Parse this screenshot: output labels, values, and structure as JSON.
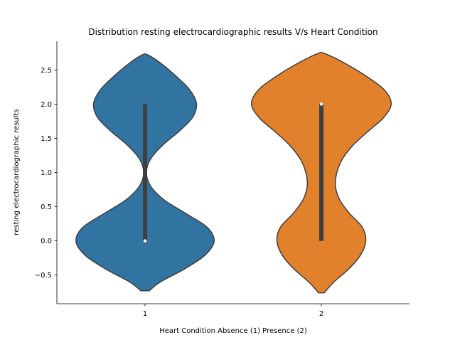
{
  "chart_data": {
    "type": "violin",
    "title": "Distribution resting electrocardiographic results V/s Heart Condition",
    "xlabel": "Heart Condition Absence (1) Presence (2)",
    "ylabel": "resting electrocardiographic results",
    "categories": [
      "1",
      "2"
    ],
    "colors": [
      "#3274a1",
      "#e1812c"
    ],
    "ylim": [
      -0.92,
      2.92
    ],
    "yticks": [
      -0.5,
      0.0,
      0.5,
      1.0,
      1.5,
      2.0,
      2.5
    ],
    "ytick_labels": [
      "−0.5",
      "0.0",
      "0.5",
      "1.0",
      "1.5",
      "2.0",
      "2.5"
    ],
    "violins": [
      {
        "category": "1",
        "color": "#3274a1",
        "profile": [
          [
            -0.73,
            0.06
          ],
          [
            -0.6,
            0.22
          ],
          [
            -0.4,
            0.58
          ],
          [
            -0.2,
            0.86
          ],
          [
            0.0,
            0.98
          ],
          [
            0.2,
            0.88
          ],
          [
            0.4,
            0.58
          ],
          [
            0.6,
            0.27
          ],
          [
            0.8,
            0.08
          ],
          [
            1.0,
            0.02
          ],
          [
            1.2,
            0.08
          ],
          [
            1.4,
            0.25
          ],
          [
            1.6,
            0.48
          ],
          [
            1.8,
            0.67
          ],
          [
            2.0,
            0.73
          ],
          [
            2.2,
            0.64
          ],
          [
            2.4,
            0.45
          ],
          [
            2.6,
            0.22
          ],
          [
            2.72,
            0.04
          ]
        ],
        "median": 0.0,
        "q1": 0.0,
        "q3": 2.0,
        "whisker_low": 0.0,
        "whisker_high": 2.0
      },
      {
        "category": "2",
        "color": "#e1812c",
        "profile": [
          [
            -0.76,
            0.04
          ],
          [
            -0.6,
            0.18
          ],
          [
            -0.4,
            0.4
          ],
          [
            -0.2,
            0.56
          ],
          [
            0.0,
            0.63
          ],
          [
            0.2,
            0.58
          ],
          [
            0.4,
            0.4
          ],
          [
            0.6,
            0.26
          ],
          [
            0.8,
            0.2
          ],
          [
            1.0,
            0.22
          ],
          [
            1.2,
            0.3
          ],
          [
            1.4,
            0.45
          ],
          [
            1.6,
            0.66
          ],
          [
            1.8,
            0.88
          ],
          [
            2.0,
            0.99
          ],
          [
            2.2,
            0.9
          ],
          [
            2.4,
            0.65
          ],
          [
            2.6,
            0.33
          ],
          [
            2.74,
            0.05
          ]
        ],
        "median": 2.0,
        "q1": 0.0,
        "q3": 2.0,
        "whisker_low": 0.0,
        "whisker_high": 2.0
      }
    ],
    "grid": false,
    "legend": "none"
  }
}
